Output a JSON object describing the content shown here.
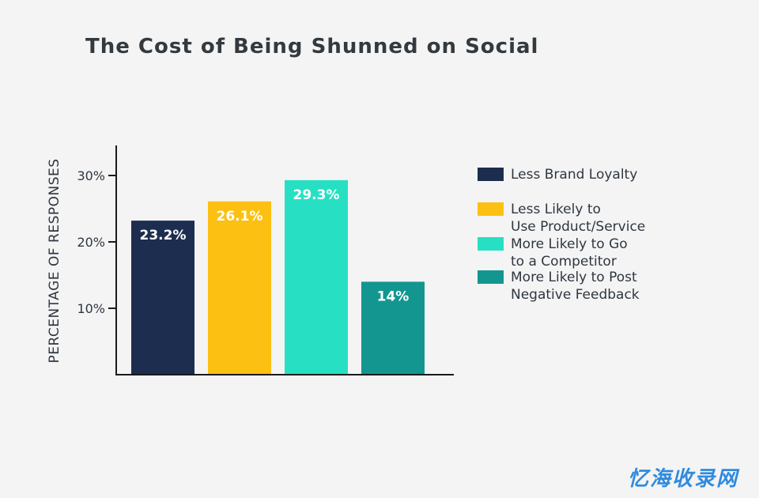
{
  "chart_data": {
    "type": "bar",
    "title": "The Cost of Being Shunned on Social",
    "xlabel": "",
    "ylabel": "PERCENTAGE OF RESPONSES",
    "ylim": [
      0,
      35
    ],
    "yticks": [
      {
        "value": 10,
        "label": "10%"
      },
      {
        "value": 20,
        "label": "20%"
      },
      {
        "value": 30,
        "label": "30%"
      }
    ],
    "grid": false,
    "legend_position": "right",
    "series": [
      {
        "name": "Less Brand Loyalty",
        "value": 23.2,
        "label": "23.2%",
        "color": "#1d2d4f"
      },
      {
        "name": "Less Likely to Use Product/Service",
        "value": 26.1,
        "label": "26.1%",
        "color": "#fcc012"
      },
      {
        "name": "More Likely to Go to a Competitor",
        "value": 29.3,
        "label": "29.3%",
        "color": "#27e0c4"
      },
      {
        "name": "More Likely to Post Negative Feedback",
        "value": 14,
        "label": "14%",
        "color": "#139690"
      }
    ]
  },
  "legend": [
    {
      "lines": [
        "Less Brand Loyalty"
      ]
    },
    {
      "lines": [
        "Less Likely to",
        "Use Product/Service"
      ]
    },
    {
      "lines": [
        "More Likely to Go",
        "to a Competitor"
      ]
    },
    {
      "lines": [
        "More Likely to Post",
        "Negative Feedback"
      ]
    }
  ],
  "watermark": "忆海收录网"
}
